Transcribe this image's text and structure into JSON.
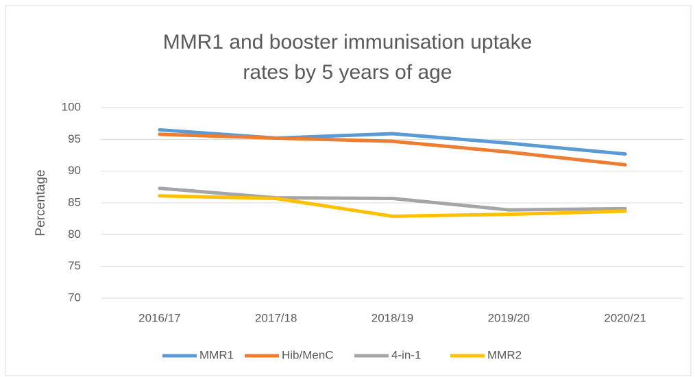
{
  "chart_data": {
    "type": "line",
    "title": "MMR1 and booster immunisation uptake rates by 5 years of age",
    "y_label": "Percentage",
    "categories": [
      "2016/17",
      "2017/18",
      "2018/19",
      "2019/20",
      "2020/21"
    ],
    "series": [
      {
        "name": "MMR1",
        "color": "#5b9bd5",
        "values": [
          96.5,
          95.2,
          95.9,
          94.4,
          92.7
        ]
      },
      {
        "name": "Hib/MenC",
        "color": "#ed7d31",
        "values": [
          95.8,
          95.2,
          94.7,
          93.0,
          91.0
        ]
      },
      {
        "name": "4-in-1",
        "color": "#a5a5a5",
        "values": [
          87.3,
          85.8,
          85.7,
          83.9,
          84.1
        ]
      },
      {
        "name": "MMR2",
        "color": "#ffc000",
        "values": [
          86.1,
          85.7,
          82.9,
          83.2,
          83.7
        ]
      }
    ],
    "ylim": [
      70,
      100
    ],
    "yticks": [
      70,
      75,
      80,
      85,
      90,
      95,
      100
    ],
    "grid": true,
    "legend": "bottom"
  }
}
